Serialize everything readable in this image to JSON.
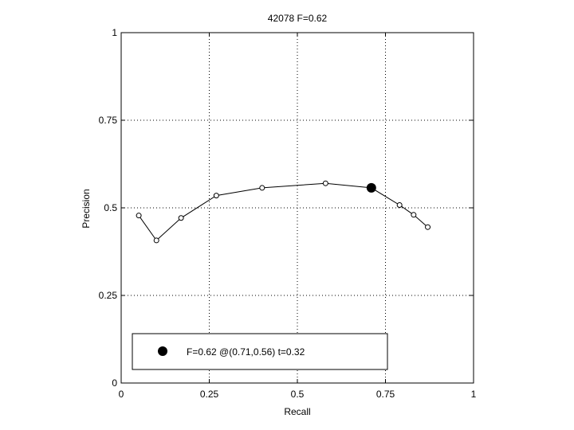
{
  "chart_data": {
    "type": "line",
    "title": "42078 F=0.62",
    "xlabel": "Recall",
    "ylabel": "Precision",
    "xlim": [
      0,
      1
    ],
    "ylim": [
      0,
      1
    ],
    "grid": true,
    "x_ticks": [
      0,
      0.25,
      0.5,
      0.75,
      1
    ],
    "y_ticks": [
      0,
      0.25,
      0.5,
      0.75,
      1
    ],
    "x_tick_labels": [
      "0",
      "0.25",
      "0.5",
      "0.75",
      "1"
    ],
    "y_tick_labels": [
      "0",
      "0.25",
      "0.5",
      "0.75",
      "1"
    ],
    "series": [
      {
        "x": [
          0.05,
          0.1,
          0.17,
          0.27,
          0.4,
          0.58,
          0.71,
          0.79,
          0.83,
          0.87
        ],
        "y": [
          0.478,
          0.407,
          0.471,
          0.535,
          0.557,
          0.57,
          0.557,
          0.508,
          0.48,
          0.445
        ]
      }
    ],
    "best_point": {
      "x": 0.71,
      "y": 0.557
    },
    "legend": {
      "position": "bottom",
      "label": "F=0.62 @(0.71,0.56) t=0.32"
    }
  }
}
